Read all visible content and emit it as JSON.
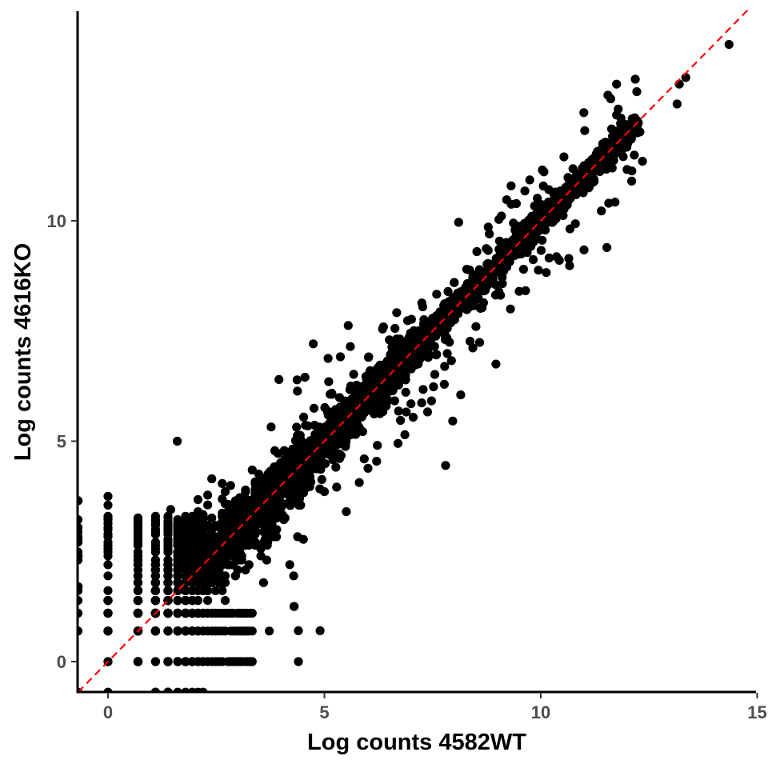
{
  "chart_data": {
    "type": "scatter",
    "xlabel": "Log counts 4582WT",
    "ylabel": "Log counts 4616KO",
    "xlim": [
      -0.69,
      14.9
    ],
    "ylim": [
      -0.69,
      14.7
    ],
    "x_ticks": [
      0,
      5,
      10,
      15
    ],
    "y_ticks": [
      0,
      5,
      10
    ],
    "x_tick_labels": [
      "0",
      "5",
      "10",
      "15"
    ],
    "y_tick_labels": [
      "0",
      "5",
      "10"
    ],
    "grid": false,
    "legend": "none",
    "point_color": "#000000",
    "reference_line": {
      "slope": 1,
      "intercept": 0,
      "style": "dashed",
      "color": "#ff0000"
    },
    "highlighted_points": [
      [
        14.35,
        14.0
      ],
      [
        13.2,
        13.1
      ],
      [
        13.35,
        13.25
      ],
      [
        13.15,
        12.65
      ],
      [
        11.75,
        13.1
      ],
      [
        11.55,
        12.85
      ],
      [
        11.75,
        12.4
      ],
      [
        11.9,
        12.2
      ],
      [
        12.1,
        10.9
      ],
      [
        9.85,
        10.1
      ],
      [
        9.6,
        8.9
      ],
      [
        9.5,
        8.4
      ],
      [
        9.3,
        8.0
      ],
      [
        8.15,
        6.05
      ],
      [
        7.8,
        4.45
      ],
      [
        7.0,
        5.85
      ],
      [
        6.7,
        4.95
      ],
      [
        6.5,
        7.3
      ],
      [
        5.1,
        6.35
      ],
      [
        4.9,
        0.7
      ],
      [
        4.4,
        0.0
      ],
      [
        4.4,
        0.7
      ],
      [
        4.3,
        1.25
      ],
      [
        4.3,
        1.25
      ],
      [
        4.2,
        2.2
      ],
      [
        1.6,
        5.0
      ],
      [
        1.45,
        3.45
      ],
      [
        3.9,
        4.4
      ],
      [
        3.95,
        6.4
      ],
      [
        4.55,
        6.45
      ],
      [
        11.0,
        11.25
      ],
      [
        12.0,
        11.9
      ],
      [
        12.35,
        11.35
      ],
      [
        6.3,
        6.25
      ],
      [
        5.5,
        5.0
      ],
      [
        10.0,
        10.0
      ],
      [
        8.0,
        8.6
      ],
      [
        8.5,
        7.6
      ],
      [
        3.5,
        4.1
      ],
      [
        7.4,
        6.9
      ],
      [
        -0.69,
        3.65
      ],
      [
        -0.69,
        2.4
      ],
      [
        -0.69,
        1.7
      ],
      [
        0.0,
        3.75
      ],
      [
        0.0,
        3.55
      ]
    ]
  }
}
